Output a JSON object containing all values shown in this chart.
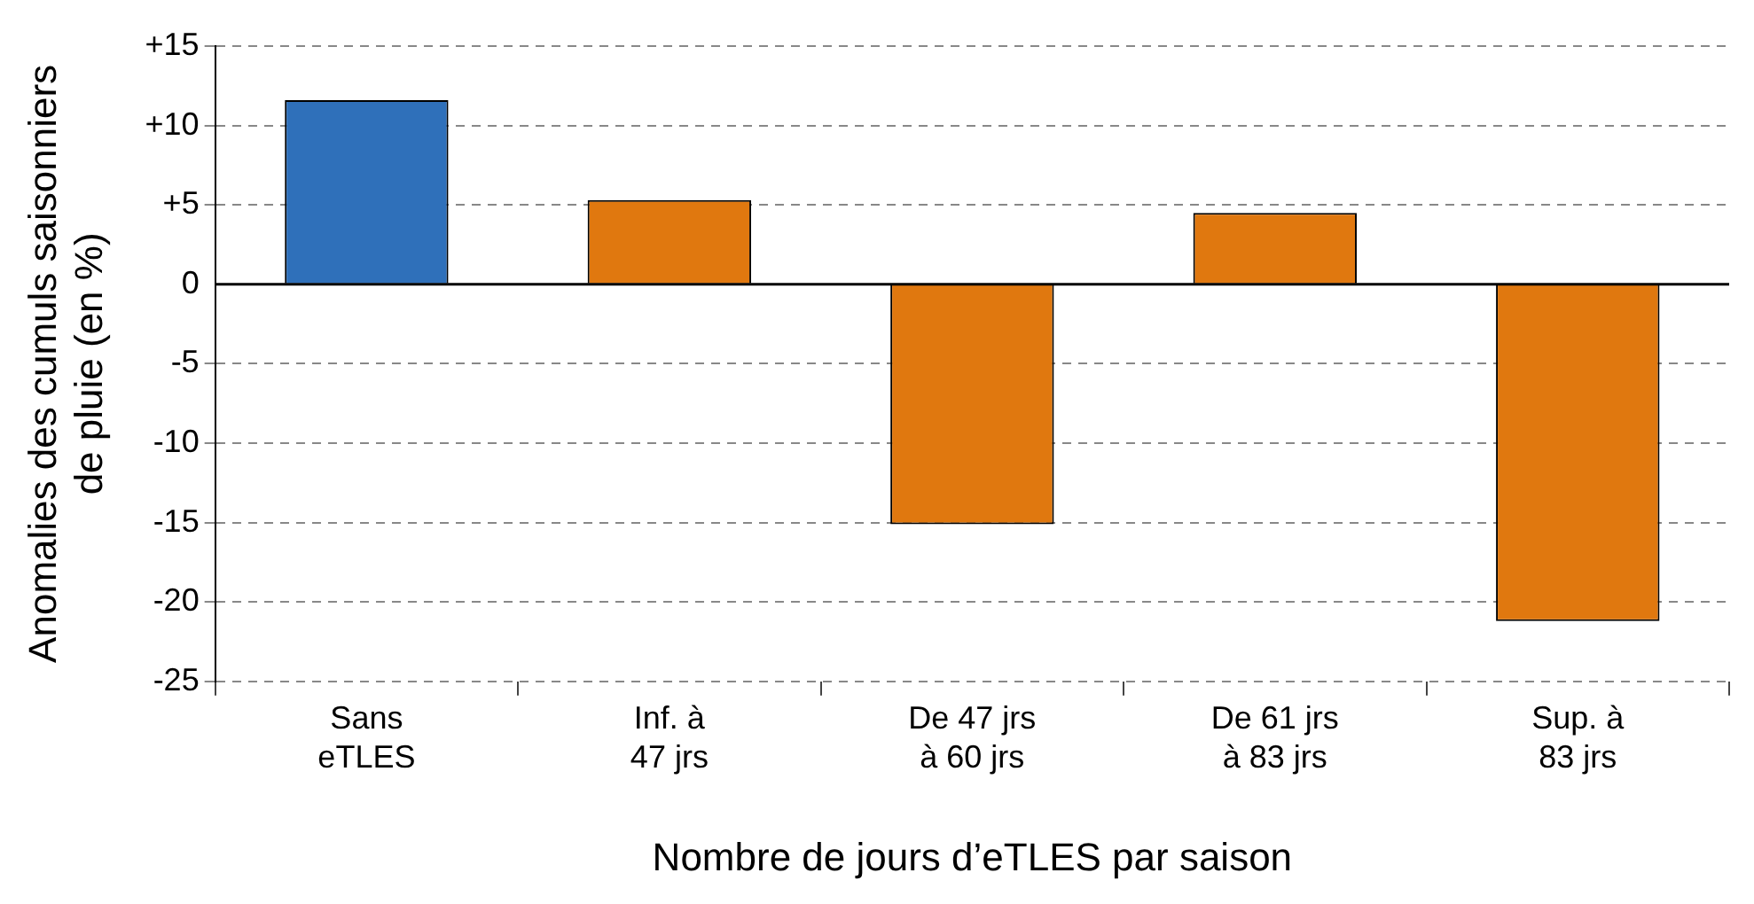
{
  "chart_data": {
    "type": "bar",
    "xlabel": "Nombre de jours d’eTLES par saison",
    "ylabel": "Anomalies des cumuls saisonniers\nde pluie (en %)",
    "categories": [
      "Sans\neTLES",
      "Inf. à\n47 jrs",
      "De 47 jrs\nà 60 jrs",
      "De 61 jrs\nà 83 jrs",
      "Sup. à\n83 jrs"
    ],
    "values": [
      11.6,
      5.3,
      -15.1,
      4.5,
      -21.2
    ],
    "colors": [
      "#2f70ba",
      "#e0780f",
      "#e0780f",
      "#e0780f",
      "#e0780f"
    ],
    "ylim": [
      -25,
      15
    ],
    "yticks": [
      {
        "value": 15,
        "label": "+15"
      },
      {
        "value": 10,
        "label": "+10"
      },
      {
        "value": 5,
        "label": "+5"
      },
      0,
      -5,
      -10,
      -15,
      -20,
      -25
    ],
    "grid": "y"
  }
}
